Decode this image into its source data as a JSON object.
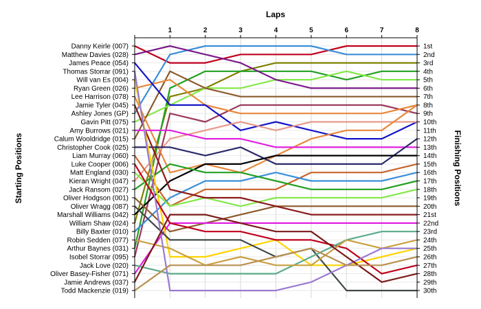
{
  "chart_data": {
    "type": "line",
    "title": "",
    "top_axis_label": "Laps",
    "left_axis_label": "Starting Positions",
    "right_axis_label": "Finishing Positions",
    "x": [
      0,
      1,
      2,
      3,
      4,
      5,
      6,
      7,
      8
    ],
    "x_tick_labels": [
      "1",
      "2",
      "3",
      "4",
      "5",
      "6",
      "7",
      "8"
    ],
    "xlim": [
      0,
      8
    ],
    "ylim": [
      1,
      30
    ],
    "y_inverted": true,
    "grid": true,
    "starting_labels": [
      "Danny Keirle (007)",
      "Matthew Davies (028)",
      "James Peace (054)",
      "Thomas Storrar (091)",
      "Will van Es (004)",
      "Ryan Green (026)",
      "Lee Harrison (078)",
      "Jamie Tyler (045)",
      "Ashley Jones (GP)",
      "Gavin Pitt (075)",
      "Amy Burrows (021)",
      "Calum Wooldridge (015)",
      "Christopher Cook (025)",
      "Liam Murray (060)",
      "Luke Cooper (006)",
      "Matt England (030)",
      "Kieran Wright (047)",
      "Jack Ransom (027)",
      "Oliver Hodgson (001)",
      "Oliver Wragg (087)",
      "Marshall Williams (042)",
      "William Shaw (024)",
      "Billy Baxter (010)",
      "Robin Sedden (077)",
      "Arthur Baynes (031)",
      "Isobel Storrar (095)",
      "Jack Love (020)",
      "Oliver Basey-Fisher (071)",
      "Jamie Andrews (037)",
      "Todd Mackenzie (019)"
    ],
    "finishing_labels": [
      "1st",
      "2nd",
      "3rd",
      "4th",
      "5th",
      "6th",
      "7th",
      "8th",
      "9th",
      "10th",
      "11th",
      "12th",
      "13th",
      "14th",
      "15th",
      "16th",
      "17th",
      "18th",
      "19th",
      "20th",
      "21st",
      "22nd",
      "23rd",
      "24th",
      "25th",
      "26th",
      "27th",
      "28th",
      "29th",
      "30th"
    ],
    "series": [
      {
        "color": "#c0001c",
        "values": [
          1,
          3,
          3,
          2,
          2,
          2,
          1,
          1,
          1
        ]
      },
      {
        "color": "#3a8fd8",
        "values": [
          9,
          2,
          1,
          1,
          1,
          1,
          2,
          2,
          2
        ]
      },
      {
        "color": "#808000",
        "values": [
          22,
          7,
          6,
          4,
          3,
          3,
          3,
          3,
          3
        ]
      },
      {
        "color": "#22a022",
        "values": [
          25,
          6,
          4,
          4,
          4,
          4,
          5,
          4,
          4
        ]
      },
      {
        "color": "#84e84a",
        "values": [
          10,
          8,
          6,
          6,
          5,
          5,
          4,
          5,
          5
        ]
      },
      {
        "color": "#7a1a8a",
        "values": [
          2,
          1,
          2,
          3,
          5,
          6,
          6,
          6,
          6
        ]
      },
      {
        "color": "#8b5a2b",
        "values": [
          12,
          4,
          6,
          7,
          7,
          7,
          7,
          7,
          7
        ]
      },
      {
        "color": "#9b3a5a",
        "values": [
          26,
          9,
          10,
          8,
          8,
          8,
          8,
          8,
          9
        ]
      },
      {
        "color": "#e8883a",
        "values": [
          6,
          5,
          8,
          9,
          9,
          9,
          9,
          9,
          8
        ]
      },
      {
        "color": "#1414c8",
        "values": [
          3,
          8,
          8,
          11,
          10,
          11,
          12,
          12,
          10
        ]
      },
      {
        "color": "#e89a8a",
        "values": [
          17,
          12,
          11,
          10,
          11,
          10,
          10,
          10,
          10
        ]
      },
      {
        "color": "#e8883a",
        "values": [
          7,
          16,
          15,
          16,
          14,
          12,
          11,
          11,
          8
        ]
      },
      {
        "color": "#e020e0",
        "values": [
          11,
          11,
          12,
          12,
          13,
          13,
          13,
          13,
          13
        ]
      },
      {
        "color": "#2a2a6a",
        "values": [
          13,
          13,
          14,
          13,
          15,
          15,
          15,
          15,
          12
        ]
      },
      {
        "color": "#000000",
        "values": [
          21,
          17,
          15,
          15,
          14,
          14,
          14,
          14,
          14
        ]
      },
      {
        "color": "#c8642a",
        "values": [
          14,
          20,
          18,
          18,
          18,
          16,
          16,
          16,
          15
        ]
      },
      {
        "color": "#3a8fd8",
        "values": [
          23,
          19,
          17,
          17,
          16,
          17,
          17,
          17,
          16
        ]
      },
      {
        "color": "#22a022",
        "values": [
          18,
          15,
          16,
          16,
          17,
          18,
          18,
          18,
          17
        ]
      },
      {
        "color": "#84e84a",
        "values": [
          16,
          20,
          19,
          20,
          19,
          19,
          19,
          19,
          18
        ]
      },
      {
        "color": "#8b5a2b",
        "values": [
          19,
          23,
          22,
          21,
          20,
          20,
          20,
          20,
          20
        ]
      },
      {
        "color": "#8b1a1a",
        "values": [
          8,
          18,
          19,
          19,
          20,
          21,
          21,
          21,
          21
        ]
      },
      {
        "color": "#e020e0",
        "values": [
          28,
          22,
          22,
          22,
          22,
          22,
          22,
          22,
          22
        ]
      },
      {
        "color": "#ffd400",
        "values": [
          5,
          26,
          26,
          25,
          24,
          27,
          27,
          26,
          25
        ]
      },
      {
        "color": "#c0001c",
        "values": [
          15,
          22,
          23,
          23,
          24,
          24,
          25,
          28,
          27
        ]
      },
      {
        "color": "#404848",
        "values": [
          20,
          24,
          24,
          24,
          26,
          25,
          30,
          30,
          30
        ]
      },
      {
        "color": "#5aaa8a",
        "values": [
          27,
          28,
          28,
          28,
          28,
          26,
          24,
          23,
          23
        ]
      },
      {
        "color": "#c8a040",
        "values": [
          24,
          25,
          27,
          26,
          27,
          27,
          24,
          25,
          24
        ]
      },
      {
        "color": "#9a7ad0",
        "values": [
          4,
          30,
          30,
          30,
          30,
          29,
          27,
          25,
          25
        ]
      },
      {
        "color": "#7a1a1a",
        "values": [
          29,
          21,
          21,
          22,
          23,
          23,
          26,
          29,
          28
        ]
      },
      {
        "color": "#b89050",
        "values": [
          30,
          27,
          27,
          27,
          26,
          25,
          27,
          27,
          26
        ]
      }
    ]
  }
}
